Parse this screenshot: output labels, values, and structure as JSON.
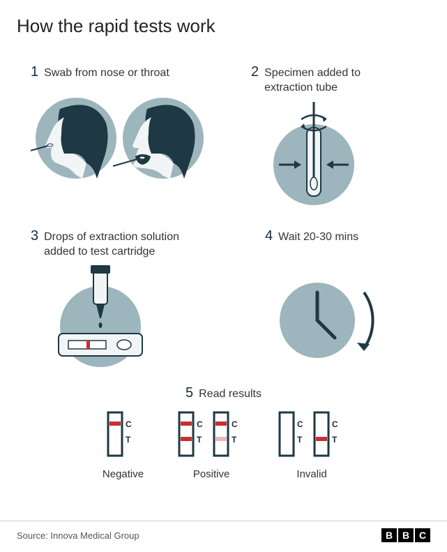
{
  "title": "How the rapid tests work",
  "colors": {
    "circle_bg": "#9db5bd",
    "dark": "#1e3844",
    "skin": "#f2f5f6",
    "red_line": "#c73030",
    "background": "#ffffff",
    "text": "#1a2b3c",
    "footer_border": "#d0d0d0",
    "footer_text": "#555555"
  },
  "steps": [
    {
      "num": "1",
      "text": "Swab from nose or throat"
    },
    {
      "num": "2",
      "text": "Specimen added to\nextraction tube"
    },
    {
      "num": "3",
      "text": "Drops of extraction solution\nadded to test cartridge"
    },
    {
      "num": "4",
      "text": "Wait 20-30 mins"
    },
    {
      "num": "5",
      "text": "Read results"
    }
  ],
  "results": {
    "strip_labels": {
      "c": "C",
      "t": "T"
    },
    "categories": [
      {
        "label": "Negative",
        "strips": [
          {
            "c": true,
            "t": false,
            "c_strength": 1,
            "t_strength": 0
          }
        ]
      },
      {
        "label": "Positive",
        "strips": [
          {
            "c": true,
            "t": true,
            "c_strength": 1,
            "t_strength": 1
          },
          {
            "c": true,
            "t": true,
            "c_strength": 1,
            "t_strength": 0.35
          }
        ]
      },
      {
        "label": "Invalid",
        "strips": [
          {
            "c": false,
            "t": false,
            "c_strength": 0,
            "t_strength": 0
          },
          {
            "c": false,
            "t": true,
            "c_strength": 0,
            "t_strength": 1
          }
        ]
      }
    ]
  },
  "source": "Source: Innova Medical Group",
  "logo": [
    "B",
    "B",
    "C"
  ]
}
